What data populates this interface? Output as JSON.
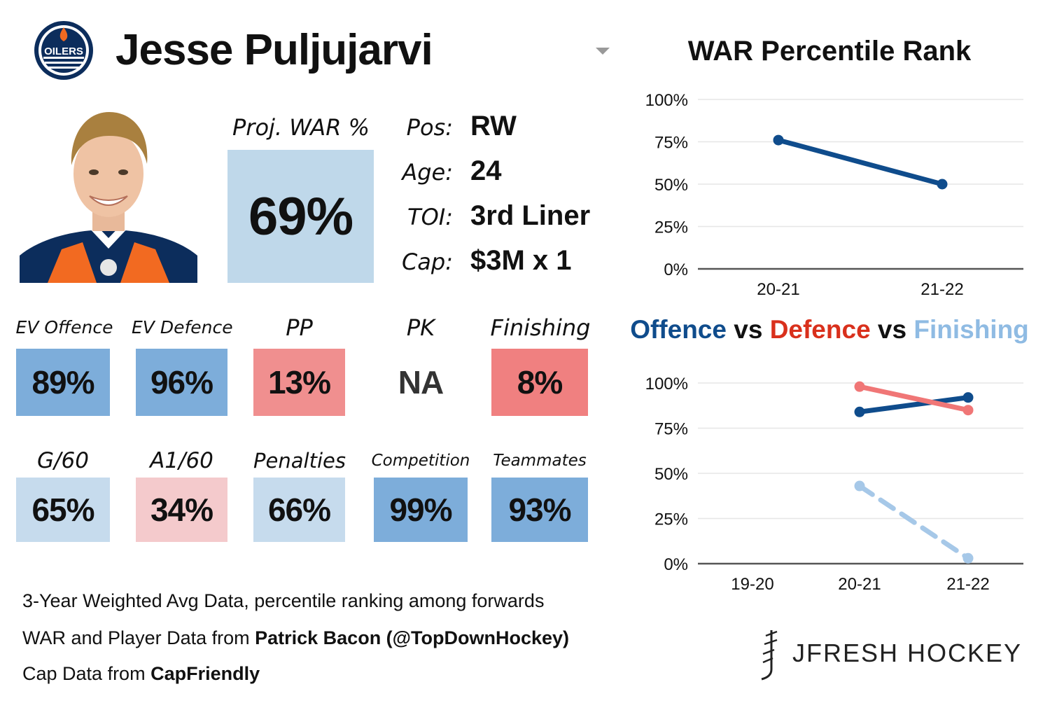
{
  "header": {
    "player_name": "Jesse Puljujarvi",
    "team_logo_text": "OILERS"
  },
  "projection": {
    "label": "Proj. WAR %",
    "value": "69%",
    "color": "#bfd8ea"
  },
  "info": [
    {
      "label": "Pos:",
      "value": "RW"
    },
    {
      "label": "Age:",
      "value": "24"
    },
    {
      "label": "TOI:",
      "value": "3rd Liner"
    },
    {
      "label": "Cap:",
      "value": "$3M x 1"
    }
  ],
  "tiles_row1": [
    {
      "label": "EV Offence",
      "value": "89%",
      "color": "#7dadda"
    },
    {
      "label": "EV Defence",
      "value": "96%",
      "color": "#7dadda"
    },
    {
      "label": "PP",
      "value": "13%",
      "color": "#f08f8f"
    },
    {
      "label": "PK",
      "value": "NA",
      "color": "#ffffff"
    },
    {
      "label": "Finishing",
      "value": "8%",
      "color": "#f08080"
    }
  ],
  "tiles_row2": [
    {
      "label": "G/60",
      "value": "65%",
      "color": "#c6dbed"
    },
    {
      "label": "A1/60",
      "value": "34%",
      "color": "#f4cacc"
    },
    {
      "label": "Penalties",
      "value": "66%",
      "color": "#c6dbed"
    },
    {
      "label": "Competition",
      "value": "99%",
      "color": "#7dadda"
    },
    {
      "label": "Teammates",
      "value": "93%",
      "color": "#7dadda"
    }
  ],
  "credits": {
    "line1": "3-Year Weighted Avg Data, percentile ranking among forwards",
    "line2_prefix": "WAR and Player Data from ",
    "line2_bold": "Patrick Bacon (@TopDownHockey)",
    "line3_prefix": "Cap Data from ",
    "line3_bold": "CapFriendly"
  },
  "brand": "JFRESH HOCKEY",
  "colors": {
    "offence": "#0f4c8c",
    "defence": "#d9301c",
    "defence_line": "#f07676",
    "finishing": "#8fbbe3"
  },
  "chart_data": [
    {
      "type": "line",
      "title": "WAR Percentile Rank",
      "categories": [
        "20-21",
        "21-22"
      ],
      "series": [
        {
          "values": [
            76,
            50
          ],
          "color": "#0f4c8c"
        }
      ],
      "ylim": [
        0,
        100
      ],
      "yticks": [
        "0%",
        "25%",
        "50%",
        "75%",
        "100%"
      ],
      "grid": true
    },
    {
      "type": "line",
      "title_parts": [
        "Offence",
        "vs",
        "Defence",
        "vs",
        "Finishing"
      ],
      "categories": [
        "19-20",
        "20-21",
        "21-22"
      ],
      "series": [
        {
          "name": "Offence",
          "values": [
            null,
            84,
            92
          ],
          "color": "#0f4c8c",
          "dashed": false
        },
        {
          "name": "Defence",
          "values": [
            null,
            98,
            85
          ],
          "color": "#f07676",
          "dashed": false
        },
        {
          "name": "Finishing",
          "values": [
            null,
            43,
            3
          ],
          "color": "#a6c8e8",
          "dashed": true
        }
      ],
      "ylim": [
        0,
        100
      ],
      "yticks": [
        "0%",
        "25%",
        "50%",
        "75%",
        "100%"
      ],
      "grid": true
    }
  ]
}
